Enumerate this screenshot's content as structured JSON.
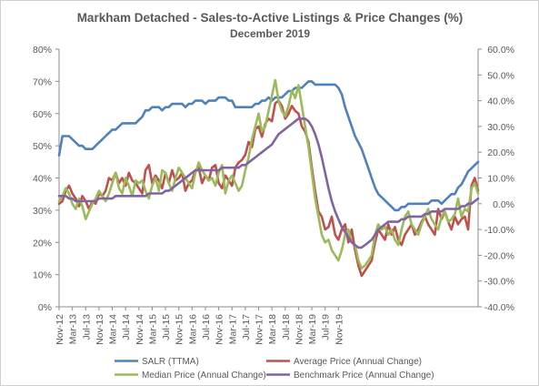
{
  "chart_data": {
    "type": "line",
    "title": "Markham Detached - Sales-to-Active Listings & Price Changes (%)",
    "subtitle": "December 2019",
    "x_tick_labels": [
      "Nov-12",
      "Mar-13",
      "Jul-13",
      "Nov-13",
      "Mar-14",
      "Jul-14",
      "Nov-14",
      "Mar-15",
      "Jul-15",
      "Nov-15",
      "Mar-16",
      "Jul-16",
      "Nov-16",
      "Mar-17",
      "Jul-17",
      "Nov-17",
      "Mar-18",
      "Jul-18",
      "Nov-18",
      "Mar-19",
      "Jul-19",
      "Nov-19"
    ],
    "x_start": "Nov-12",
    "x_end": "Dec-19",
    "y_left": {
      "ylim": [
        0,
        80
      ],
      "tick_labels": [
        "0%",
        "10%",
        "20%",
        "30%",
        "40%",
        "50%",
        "60%",
        "70%",
        "80%"
      ]
    },
    "y_right": {
      "ylim": [
        -40,
        60
      ],
      "tick_labels": [
        "-40.0%",
        "-30.0%",
        "-20.0%",
        "-10.0%",
        "0.0%",
        "10.0%",
        "20.0%",
        "30.0%",
        "40.0%",
        "50.0%",
        "60.0%"
      ]
    },
    "grid": false,
    "legend_position": "bottom",
    "series": [
      {
        "name": "SALR (TTMA)",
        "axis": "left",
        "color": "#4f81bd",
        "values": [
          47,
          53,
          53,
          53,
          52,
          51,
          50,
          50,
          49,
          49,
          49,
          50,
          51,
          52,
          53,
          54,
          55,
          55,
          56,
          57,
          57,
          57,
          57,
          57,
          58,
          59,
          61,
          61,
          62,
          62,
          62,
          61,
          62,
          62,
          63,
          63,
          63,
          63,
          62,
          63,
          63,
          64,
          64,
          64,
          63,
          64,
          64,
          64,
          65,
          65,
          65,
          64,
          64,
          62,
          62,
          62,
          62,
          62,
          62,
          63,
          63,
          64,
          64,
          65,
          64,
          65,
          65,
          65,
          66,
          67,
          67,
          68,
          68,
          68,
          69,
          70,
          70,
          69,
          69,
          69,
          69,
          69,
          69,
          69,
          68,
          66,
          62,
          59,
          56,
          53,
          51,
          49,
          46,
          43,
          40,
          37,
          35,
          34,
          33,
          32,
          31,
          30,
          30,
          31,
          31,
          32,
          32,
          32,
          32,
          32,
          32,
          32,
          33,
          33,
          33,
          32,
          33,
          34,
          35,
          35,
          37,
          38,
          40,
          42,
          43,
          44,
          45
        ]
      },
      {
        "name": "Average Price (Annual Change)",
        "axis": "right",
        "color": "#c0504d",
        "values": [
          0,
          1,
          5,
          7,
          4,
          2,
          -1,
          3,
          1,
          -2,
          1,
          0,
          4,
          3,
          5,
          10,
          9,
          12,
          8,
          10,
          7,
          12,
          9,
          8,
          6,
          4,
          13,
          15,
          8,
          11,
          9,
          6,
          12,
          8,
          13,
          9,
          10,
          12,
          5,
          8,
          9,
          13,
          14,
          8,
          11,
          9,
          14,
          15,
          8,
          6,
          11,
          9,
          7,
          14,
          16,
          17,
          19,
          24,
          22,
          29,
          30,
          26,
          31,
          33,
          32,
          39,
          40,
          38,
          33,
          35,
          38,
          36,
          35,
          30,
          28,
          24,
          14,
          5,
          -3,
          -5,
          -10,
          -9,
          -5,
          -12,
          -14,
          -10,
          -8,
          -15,
          -10,
          -18,
          -24,
          -28,
          -26,
          -24,
          -22,
          -15,
          -10,
          -12,
          -14,
          -8,
          -12,
          -9,
          -14,
          -16,
          -12,
          -10,
          -8,
          -12,
          -10,
          -7,
          -5,
          -8,
          -10,
          -12,
          -2,
          -6,
          -3,
          -7,
          -10,
          -5,
          -8,
          -6,
          -5,
          -10,
          7,
          10,
          5
        ]
      },
      {
        "name": "Median Price (Annual Change)",
        "axis": "right",
        "color": "#9bbb59",
        "values": [
          1,
          3,
          6,
          4,
          0,
          -2,
          2,
          -1,
          -6,
          -3,
          0,
          2,
          5,
          3,
          1,
          4,
          8,
          12,
          6,
          4,
          10,
          7,
          3,
          9,
          8,
          9,
          5,
          2,
          7,
          10,
          5,
          13,
          12,
          8,
          5,
          10,
          14,
          12,
          10,
          8,
          6,
          12,
          16,
          13,
          11,
          9,
          10,
          7,
          12,
          15,
          4,
          9,
          11,
          8,
          5,
          7,
          13,
          18,
          25,
          30,
          35,
          28,
          30,
          36,
          42,
          48,
          40,
          36,
          34,
          38,
          44,
          41,
          46,
          38,
          30,
          22,
          12,
          2,
          -5,
          -12,
          -15,
          -14,
          -18,
          -20,
          -22,
          -18,
          -12,
          -10,
          -15,
          -16,
          -22,
          -25,
          -24,
          -22,
          -20,
          -12,
          -8,
          -10,
          -9,
          -12,
          -10,
          -14,
          -16,
          -10,
          -5,
          -3,
          -8,
          -10,
          -12,
          -8,
          -5,
          -2,
          -6,
          -8,
          -10,
          -5,
          -3,
          -7,
          -6,
          -4,
          2,
          -5,
          -2,
          -3,
          6,
          8,
          4
        ]
      },
      {
        "name": "Benchmark Price (Annual Change)",
        "axis": "right",
        "color": "#8064a2",
        "values": [
          3,
          3,
          3,
          2,
          2,
          1,
          1,
          1,
          1,
          1,
          1,
          1,
          2,
          2,
          2,
          2,
          2,
          3,
          3,
          3,
          3,
          3,
          3,
          3,
          3,
          3,
          3,
          4,
          4,
          4,
          4,
          4,
          5,
          5,
          6,
          7,
          8,
          9,
          10,
          11,
          12,
          13,
          13,
          13,
          13,
          13,
          13,
          13,
          13,
          14,
          14,
          14,
          14,
          14,
          14,
          15,
          15,
          16,
          17,
          18,
          19,
          20,
          21,
          22,
          23,
          25,
          27,
          28,
          29,
          30,
          31,
          32,
          33,
          33,
          33,
          32,
          30,
          27,
          23,
          18,
          12,
          6,
          1,
          -3,
          -6,
          -9,
          -11,
          -13,
          -15,
          -16,
          -17,
          -17,
          -16,
          -15,
          -14,
          -12,
          -10,
          -9,
          -8,
          -7,
          -7,
          -7,
          -7,
          -6,
          -6,
          -5,
          -5,
          -5,
          -5,
          -5,
          -4,
          -4,
          -3,
          -3,
          -3,
          -3,
          -2,
          -2,
          -2,
          -2,
          -2,
          -1,
          -1,
          0,
          0,
          1,
          2
        ]
      }
    ]
  }
}
